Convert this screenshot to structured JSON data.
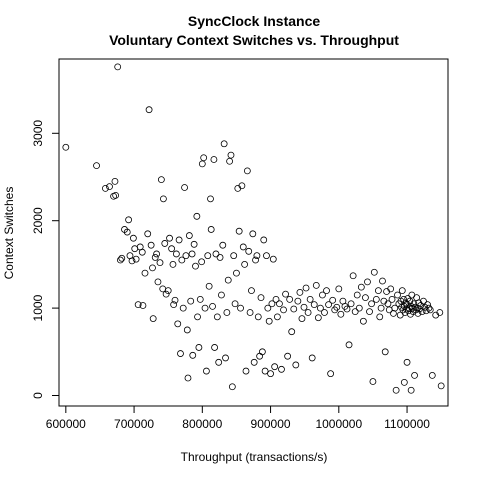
{
  "chart_data": {
    "type": "scatter",
    "title": "SyncClock Instance",
    "subtitle": "Voluntary Context Switches vs. Throughput",
    "xlabel": "Throughput (transactions/s)",
    "ylabel": "Context Switches",
    "xlim": [
      590000,
      1160000
    ],
    "ylim": [
      -120,
      3850
    ],
    "xticks": [
      600000,
      700000,
      800000,
      900000,
      1000000,
      1100000
    ],
    "xtick_labels": [
      "600000",
      "700000",
      "800000",
      "900000",
      "1000000",
      "1100000"
    ],
    "yticks": [
      0,
      1000,
      2000,
      3000
    ],
    "ytick_labels": [
      "0",
      "1000",
      "2000",
      "3000"
    ],
    "grid": false,
    "legend": "none",
    "marker": "open-circle",
    "color": "#000000",
    "series": [
      {
        "points": [
          [
            600000,
            2840
          ],
          [
            645000,
            2630
          ],
          [
            658000,
            2370
          ],
          [
            664000,
            2390
          ],
          [
            670000,
            2280
          ],
          [
            673000,
            2290
          ],
          [
            676000,
            3760
          ],
          [
            672000,
            2450
          ],
          [
            680000,
            1550
          ],
          [
            682000,
            1570
          ],
          [
            686000,
            1900
          ],
          [
            690000,
            1870
          ],
          [
            692000,
            2010
          ],
          [
            694000,
            1600
          ],
          [
            697000,
            1540
          ],
          [
            699000,
            1800
          ],
          [
            701000,
            1680
          ],
          [
            703000,
            1560
          ],
          [
            706000,
            1040
          ],
          [
            709000,
            1700
          ],
          [
            712000,
            1640
          ],
          [
            713000,
            1030
          ],
          [
            716000,
            1400
          ],
          [
            720000,
            1850
          ],
          [
            722000,
            3270
          ],
          [
            725000,
            1720
          ],
          [
            727000,
            1460
          ],
          [
            728000,
            880
          ],
          [
            731000,
            1580
          ],
          [
            733000,
            1620
          ],
          [
            735000,
            1300
          ],
          [
            738000,
            1520
          ],
          [
            740000,
            2470
          ],
          [
            742000,
            1220
          ],
          [
            743000,
            2250
          ],
          [
            745000,
            1740
          ],
          [
            747000,
            1160
          ],
          [
            750000,
            1200
          ],
          [
            752000,
            1800
          ],
          [
            755000,
            1680
          ],
          [
            757000,
            1500
          ],
          [
            758000,
            1040
          ],
          [
            760000,
            1090
          ],
          [
            762000,
            1620
          ],
          [
            764000,
            820
          ],
          [
            766000,
            1780
          ],
          [
            768000,
            480
          ],
          [
            770000,
            1550
          ],
          [
            772000,
            1000
          ],
          [
            774000,
            2380
          ],
          [
            776000,
            1600
          ],
          [
            778000,
            750
          ],
          [
            779000,
            200
          ],
          [
            781000,
            1830
          ],
          [
            783000,
            1080
          ],
          [
            785000,
            1620
          ],
          [
            786000,
            460
          ],
          [
            788000,
            1730
          ],
          [
            790000,
            1480
          ],
          [
            792000,
            2050
          ],
          [
            793000,
            900
          ],
          [
            795000,
            550
          ],
          [
            797000,
            1100
          ],
          [
            799000,
            1530
          ],
          [
            800000,
            2650
          ],
          [
            802000,
            2720
          ],
          [
            804000,
            1000
          ],
          [
            806000,
            280
          ],
          [
            808000,
            1600
          ],
          [
            810000,
            1250
          ],
          [
            812000,
            2250
          ],
          [
            813000,
            1900
          ],
          [
            815000,
            1020
          ],
          [
            817000,
            2700
          ],
          [
            818000,
            550
          ],
          [
            820000,
            1620
          ],
          [
            822000,
            900
          ],
          [
            824000,
            380
          ],
          [
            826000,
            1580
          ],
          [
            828000,
            1150
          ],
          [
            830000,
            1720
          ],
          [
            832000,
            2880
          ],
          [
            834000,
            430
          ],
          [
            836000,
            950
          ],
          [
            838000,
            1320
          ],
          [
            840000,
            2680
          ],
          [
            842000,
            2750
          ],
          [
            844000,
            100
          ],
          [
            846000,
            1600
          ],
          [
            848000,
            1050
          ],
          [
            850000,
            1400
          ],
          [
            852000,
            2370
          ],
          [
            854000,
            1880
          ],
          [
            856000,
            1000
          ],
          [
            858000,
            2400
          ],
          [
            860000,
            1700
          ],
          [
            862000,
            1500
          ],
          [
            864000,
            280
          ],
          [
            866000,
            2570
          ],
          [
            868000,
            1650
          ],
          [
            870000,
            950
          ],
          [
            872000,
            1200
          ],
          [
            874000,
            1850
          ],
          [
            876000,
            380
          ],
          [
            878000,
            1550
          ],
          [
            880000,
            1600
          ],
          [
            882000,
            900
          ],
          [
            884000,
            450
          ],
          [
            886000,
            1120
          ],
          [
            888000,
            500
          ],
          [
            890000,
            1780
          ],
          [
            892000,
            280
          ],
          [
            894000,
            1600
          ],
          [
            896000,
            1000
          ],
          [
            898000,
            850
          ],
          [
            900000,
            250
          ],
          [
            902000,
            1050
          ],
          [
            904000,
            1560
          ],
          [
            906000,
            330
          ],
          [
            908000,
            1100
          ],
          [
            910000,
            900
          ],
          [
            913000,
            1050
          ],
          [
            916000,
            300
          ],
          [
            919000,
            980
          ],
          [
            922000,
            1160
          ],
          [
            925000,
            450
          ],
          [
            928000,
            1100
          ],
          [
            931000,
            730
          ],
          [
            934000,
            990
          ],
          [
            937000,
            350
          ],
          [
            940000,
            1080
          ],
          [
            943000,
            1180
          ],
          [
            946000,
            880
          ],
          [
            949000,
            1010
          ],
          [
            952000,
            1230
          ],
          [
            955000,
            950
          ],
          [
            958000,
            1100
          ],
          [
            961000,
            430
          ],
          [
            964000,
            1040
          ],
          [
            967000,
            1260
          ],
          [
            970000,
            890
          ],
          [
            973000,
            1000
          ],
          [
            976000,
            1150
          ],
          [
            979000,
            950
          ],
          [
            982000,
            1200
          ],
          [
            985000,
            1040
          ],
          [
            988000,
            250
          ],
          [
            991000,
            1090
          ],
          [
            994000,
            980
          ],
          [
            997000,
            1010
          ],
          [
            1000000,
            1220
          ],
          [
            1003000,
            930
          ],
          [
            1006000,
            1080
          ],
          [
            1009000,
            1020
          ],
          [
            1012000,
            990
          ],
          [
            1015000,
            580
          ],
          [
            1018000,
            1050
          ],
          [
            1021000,
            1370
          ],
          [
            1024000,
            960
          ],
          [
            1027000,
            1150
          ],
          [
            1030000,
            1000
          ],
          [
            1033000,
            1240
          ],
          [
            1036000,
            850
          ],
          [
            1039000,
            1120
          ],
          [
            1042000,
            1300
          ],
          [
            1045000,
            960
          ],
          [
            1048000,
            1050
          ],
          [
            1050000,
            160
          ],
          [
            1052000,
            1410
          ],
          [
            1055000,
            1100
          ],
          [
            1058000,
            1200
          ],
          [
            1060000,
            900
          ],
          [
            1062000,
            1000
          ],
          [
            1064000,
            1310
          ],
          [
            1066000,
            1080
          ],
          [
            1068000,
            500
          ],
          [
            1070000,
            1190
          ],
          [
            1072000,
            1050
          ],
          [
            1074000,
            980
          ],
          [
            1076000,
            1220
          ],
          [
            1078000,
            1100
          ],
          [
            1080000,
            940
          ],
          [
            1082000,
            1000
          ],
          [
            1084000,
            60
          ],
          [
            1086000,
            1150
          ],
          [
            1088000,
            1050
          ],
          [
            1090000,
            920
          ],
          [
            1091000,
            1080
          ],
          [
            1092000,
            1010
          ],
          [
            1093000,
            1200
          ],
          [
            1094000,
            980
          ],
          [
            1095000,
            1100
          ],
          [
            1096000,
            1020
          ],
          [
            1097000,
            950
          ],
          [
            1098000,
            1060
          ],
          [
            1099000,
            990
          ],
          [
            1100000,
            1040
          ],
          [
            1101000,
            1110
          ],
          [
            1102000,
            970
          ],
          [
            1103000,
            1000
          ],
          [
            1104000,
            1080
          ],
          [
            1105000,
            930
          ],
          [
            1106000,
            1020
          ],
          [
            1107000,
            1150
          ],
          [
            1108000,
            1000
          ],
          [
            1109000,
            960
          ],
          [
            1110000,
            1050
          ],
          [
            1111000,
            230
          ],
          [
            1112000,
            1010
          ],
          [
            1113000,
            980
          ],
          [
            1114000,
            1120
          ],
          [
            1115000,
            1000
          ],
          [
            1116000,
            940
          ],
          [
            1117000,
            1060
          ],
          [
            1118000,
            990
          ],
          [
            1120000,
            1030
          ],
          [
            1122000,
            960
          ],
          [
            1124000,
            1080
          ],
          [
            1126000,
            1010
          ],
          [
            1128000,
            970
          ],
          [
            1130000,
            1040
          ],
          [
            1132000,
            1000
          ],
          [
            1134000,
            980
          ],
          [
            1137000,
            230
          ],
          [
            1150000,
            110
          ],
          [
            1148000,
            950
          ],
          [
            1142000,
            920
          ],
          [
            1106000,
            60
          ],
          [
            1100000,
            380
          ],
          [
            1096000,
            150
          ]
        ]
      }
    ]
  }
}
